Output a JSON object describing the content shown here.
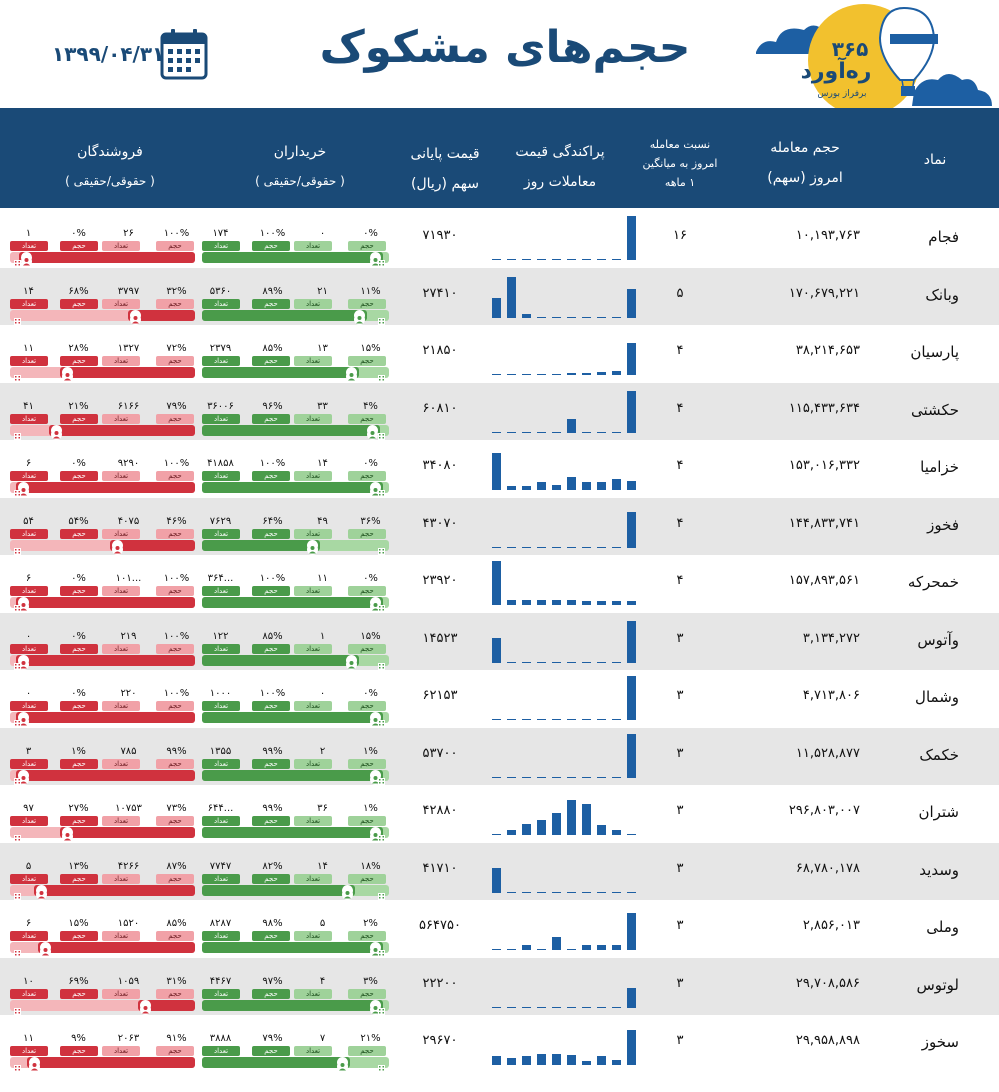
{
  "title": "حجم‌های مشکوک",
  "date": "۱۳۹۹/۰۴/۳۱",
  "logo": {
    "brand": "ره‌آورد",
    "number": "۳۶۵",
    "tagline": "برفراز بورس"
  },
  "icons": {
    "calendar": "calendar-icon",
    "balloon": "hot-air-balloon-icon",
    "cloud": "cloud-icon"
  },
  "colors": {
    "header": "#1a4a77",
    "buy": "#4a9b4a",
    "buy_light": "#a8d8a3",
    "sell": "#d0323e",
    "sell_light": "#f4b6ba",
    "bar": "#1d5fa3",
    "logo": "#f2c12e"
  },
  "headers": {
    "symbol": "نماد",
    "volume": [
      "حجم معامله",
      "امروز (سهم)"
    ],
    "ratio": [
      "نسبت معامله",
      "امروز به میانگین",
      "۱ ماهه"
    ],
    "distribution": [
      "پراکندگی قیمت",
      "معاملات روز"
    ],
    "price": [
      "قیمت پایانی",
      "سهم (ریال)"
    ],
    "buyers": [
      "خریداران",
      "( حقوقی/حقیقی )"
    ],
    "sellers": [
      "فروشندگان",
      "( حقوقی/حقیقی )"
    ]
  },
  "tag_labels": {
    "volume": "حجم",
    "count": "تعداد"
  },
  "rows": [
    {
      "symbol": "فجام",
      "volume": "۱۰,۱۹۳,۷۶۳",
      "ratio": "۱۶",
      "price": "۷۱۹۳۰",
      "bars": [
        0.02,
        0,
        0,
        0,
        0,
        0,
        0,
        0,
        0,
        1
      ],
      "buy": {
        "n1": "۰%",
        "n2": "۰",
        "n3": "۱۰۰%",
        "n4": "۱۷۴",
        "fill": 0.97
      },
      "sell": {
        "n1": "۱۰۰%",
        "n2": "۲۶",
        "n3": "۰%",
        "n4": "۱",
        "fill": 0.95
      }
    },
    {
      "symbol": "وبانک",
      "volume": "۱۷۰,۶۷۹,۲۲۱",
      "ratio": "۵",
      "price": "۲۷۴۱۰",
      "bars": [
        0.45,
        0.92,
        0.08,
        0.02,
        0.02,
        0.02,
        0.02,
        0.02,
        0.02,
        0.65
      ],
      "buy": {
        "n1": "۱۱%",
        "n2": "۲۱",
        "n3": "۸۹%",
        "n4": "۵۳۶۰",
        "fill": 0.88
      },
      "sell": {
        "n1": "۳۲%",
        "n2": "۳۷۹۷",
        "n3": "۶۸%",
        "n4": "۱۴",
        "fill": 0.36
      }
    },
    {
      "symbol": "پارسیان",
      "volume": "۳۸,۲۱۴,۶۵۳",
      "ratio": "۴",
      "price": "۲۱۸۵۰",
      "bars": [
        0,
        0,
        0,
        0,
        0,
        0.04,
        0.04,
        0.06,
        0.1,
        0.72
      ],
      "buy": {
        "n1": "۱۵%",
        "n2": "۱۳",
        "n3": "۸۵%",
        "n4": "۲۳۷۹",
        "fill": 0.84
      },
      "sell": {
        "n1": "۷۲%",
        "n2": "۱۳۲۷",
        "n3": "۲۸%",
        "n4": "۱۱",
        "fill": 0.73
      }
    },
    {
      "symbol": "حکشتی",
      "volume": "۱۱۵,۴۳۳,۶۳۴",
      "ratio": "۴",
      "price": "۶۰۸۱۰",
      "bars": [
        0,
        0,
        0,
        0,
        0,
        0.3,
        0.02,
        0.02,
        0.02,
        0.95
      ],
      "buy": {
        "n1": "۴%",
        "n2": "۳۳",
        "n3": "۹۶%",
        "n4": "۳۶۰۰۶",
        "fill": 0.95
      },
      "sell": {
        "n1": "۷۹%",
        "n2": "۶۱۶۶",
        "n3": "۲۱%",
        "n4": "۴۱",
        "fill": 0.79
      }
    },
    {
      "symbol": "خزامیا",
      "volume": "۱۵۳,۰۱۶,۳۳۲",
      "ratio": "۴",
      "price": "۳۴۰۸۰",
      "bars": [
        0.85,
        0.1,
        0.1,
        0.18,
        0.12,
        0.3,
        0.18,
        0.18,
        0.25,
        0.2
      ],
      "buy": {
        "n1": "۰%",
        "n2": "۱۴",
        "n3": "۱۰۰%",
        "n4": "۴۱۸۵۸",
        "fill": 0.97
      },
      "sell": {
        "n1": "۱۰۰%",
        "n2": "۹۲۹۰",
        "n3": "۰%",
        "n4": "۶",
        "fill": 0.97
      }
    },
    {
      "symbol": "فخوز",
      "volume": "۱۴۴,۸۳۳,۷۴۱",
      "ratio": "۴",
      "price": "۴۳۰۷۰",
      "bars": [
        0,
        0,
        0,
        0,
        0,
        0,
        0,
        0,
        0,
        0.8
      ],
      "buy": {
        "n1": "۳۶%",
        "n2": "۴۹",
        "n3": "۶۴%",
        "n4": "۷۶۲۹",
        "fill": 0.63
      },
      "sell": {
        "n1": "۴۶%",
        "n2": "۴۰۷۵",
        "n3": "۵۴%",
        "n4": "۵۴",
        "fill": 0.46
      }
    },
    {
      "symbol": "خمحرکه",
      "volume": "۱۵۷,۸۹۳,۵۶۱",
      "ratio": "۴",
      "price": "۲۳۹۲۰",
      "bars": [
        1,
        0.12,
        0.12,
        0.12,
        0.12,
        0.12,
        0.08,
        0.08,
        0.08,
        0.08
      ],
      "buy": {
        "n1": "۰%",
        "n2": "۱۱",
        "n3": "۱۰۰%",
        "n4": "۳۶۴...",
        "fill": 0.97
      },
      "sell": {
        "n1": "۱۰۰%",
        "n2": "۱۰۱...",
        "n3": "۰%",
        "n4": "۶",
        "fill": 0.97
      }
    },
    {
      "symbol": "وآتوس",
      "volume": "۳,۱۳۴,۲۷۲",
      "ratio": "۳",
      "price": "۱۴۵۲۳",
      "bars": [
        0.55,
        0,
        0,
        0,
        0,
        0,
        0,
        0,
        0,
        0.95
      ],
      "buy": {
        "n1": "۱۵%",
        "n2": "۱",
        "n3": "۸۵%",
        "n4": "۱۲۲",
        "fill": 0.84
      },
      "sell": {
        "n1": "۱۰۰%",
        "n2": "۲۱۹",
        "n3": "۰%",
        "n4": "۰",
        "fill": 0.97
      }
    },
    {
      "symbol": "وشمال",
      "volume": "۴,۷۱۳,۸۰۶",
      "ratio": "۳",
      "price": "۶۲۱۵۳",
      "bars": [
        0,
        0,
        0,
        0,
        0,
        0,
        0,
        0,
        0,
        1
      ],
      "buy": {
        "n1": "۰%",
        "n2": "۰",
        "n3": "۱۰۰%",
        "n4": "۱۰۰۰",
        "fill": 0.97
      },
      "sell": {
        "n1": "۱۰۰%",
        "n2": "۲۲۰",
        "n3": "۰%",
        "n4": "۰",
        "fill": 0.97
      }
    },
    {
      "symbol": "خکمک",
      "volume": "۱۱,۵۲۸,۸۷۷",
      "ratio": "۳",
      "price": "۵۳۷۰۰",
      "bars": [
        0,
        0,
        0,
        0,
        0,
        0,
        0,
        0,
        0,
        1
      ],
      "buy": {
        "n1": "۱%",
        "n2": "۲",
        "n3": "۹۹%",
        "n4": "۱۳۵۵",
        "fill": 0.97
      },
      "sell": {
        "n1": "۹۹%",
        "n2": "۷۸۵",
        "n3": "۱%",
        "n4": "۳",
        "fill": 0.97
      }
    },
    {
      "symbol": "شتران",
      "volume": "۲۹۶,۸۰۳,۰۰۷",
      "ratio": "۳",
      "price": "۴۲۸۸۰",
      "bars": [
        0,
        0.12,
        0.25,
        0.35,
        0.5,
        0.8,
        0.7,
        0.22,
        0.12,
        0.02
      ],
      "buy": {
        "n1": "۱%",
        "n2": "۳۶",
        "n3": "۹۹%",
        "n4": "۶۴۴...",
        "fill": 0.97
      },
      "sell": {
        "n1": "۷۳%",
        "n2": "۱۰۷۵۳",
        "n3": "۲۷%",
        "n4": "۹۷",
        "fill": 0.73
      }
    },
    {
      "symbol": "وسدید",
      "volume": "۶۸,۷۸۰,۱۷۸",
      "ratio": "۳",
      "price": "۴۱۷۱۰",
      "bars": [
        0.55,
        0.02,
        0.02,
        0.02,
        0.02,
        0.02,
        0.02,
        0.02,
        0.02,
        0.02
      ],
      "buy": {
        "n1": "۱۸%",
        "n2": "۱۴",
        "n3": "۸۲%",
        "n4": "۷۷۴۷",
        "fill": 0.82
      },
      "sell": {
        "n1": "۸۷%",
        "n2": "۴۲۶۶",
        "n3": "۱۳%",
        "n4": "۵",
        "fill": 0.87
      }
    },
    {
      "symbol": "وملی",
      "volume": "۲,۸۵۶,۰۱۳",
      "ratio": "۳",
      "price": "۵۶۴۷۵۰",
      "bars": [
        0.02,
        0.02,
        0.12,
        0.02,
        0.3,
        0.02,
        0.12,
        0.12,
        0.12,
        0.85
      ],
      "buy": {
        "n1": "۲%",
        "n2": "۵",
        "n3": "۹۸%",
        "n4": "۸۲۸۷",
        "fill": 0.97
      },
      "sell": {
        "n1": "۸۵%",
        "n2": "۱۵۲۰",
        "n3": "۱۵%",
        "n4": "۶",
        "fill": 0.85
      }
    },
    {
      "symbol": "لوتوس",
      "volume": "۲۹,۷۰۸,۵۸۶",
      "ratio": "۳",
      "price": "۲۲۲۰۰",
      "bars": [
        0,
        0.02,
        0.02,
        0.02,
        0.02,
        0.02,
        0.02,
        0.02,
        0.02,
        0.45
      ],
      "buy": {
        "n1": "۳%",
        "n2": "۴",
        "n3": "۹۷%",
        "n4": "۴۴۶۷",
        "fill": 0.97
      },
      "sell": {
        "n1": "۳۱%",
        "n2": "۱۰۵۹",
        "n3": "۶۹%",
        "n4": "۱۰",
        "fill": 0.31
      }
    },
    {
      "symbol": "سخوز",
      "volume": "۲۹,۹۵۸,۸۹۸",
      "ratio": "۳",
      "price": "۲۹۶۷۰",
      "bars": [
        0.2,
        0.15,
        0.2,
        0.25,
        0.25,
        0.22,
        0.08,
        0.2,
        0.12,
        0.8
      ],
      "buy": {
        "n1": "۲۱%",
        "n2": "۷",
        "n3": "۷۹%",
        "n4": "۳۸۸۸",
        "fill": 0.79
      },
      "sell": {
        "n1": "۹۱%",
        "n2": "۲۰۶۳",
        "n3": "۹%",
        "n4": "۱۱",
        "fill": 0.91
      }
    }
  ]
}
